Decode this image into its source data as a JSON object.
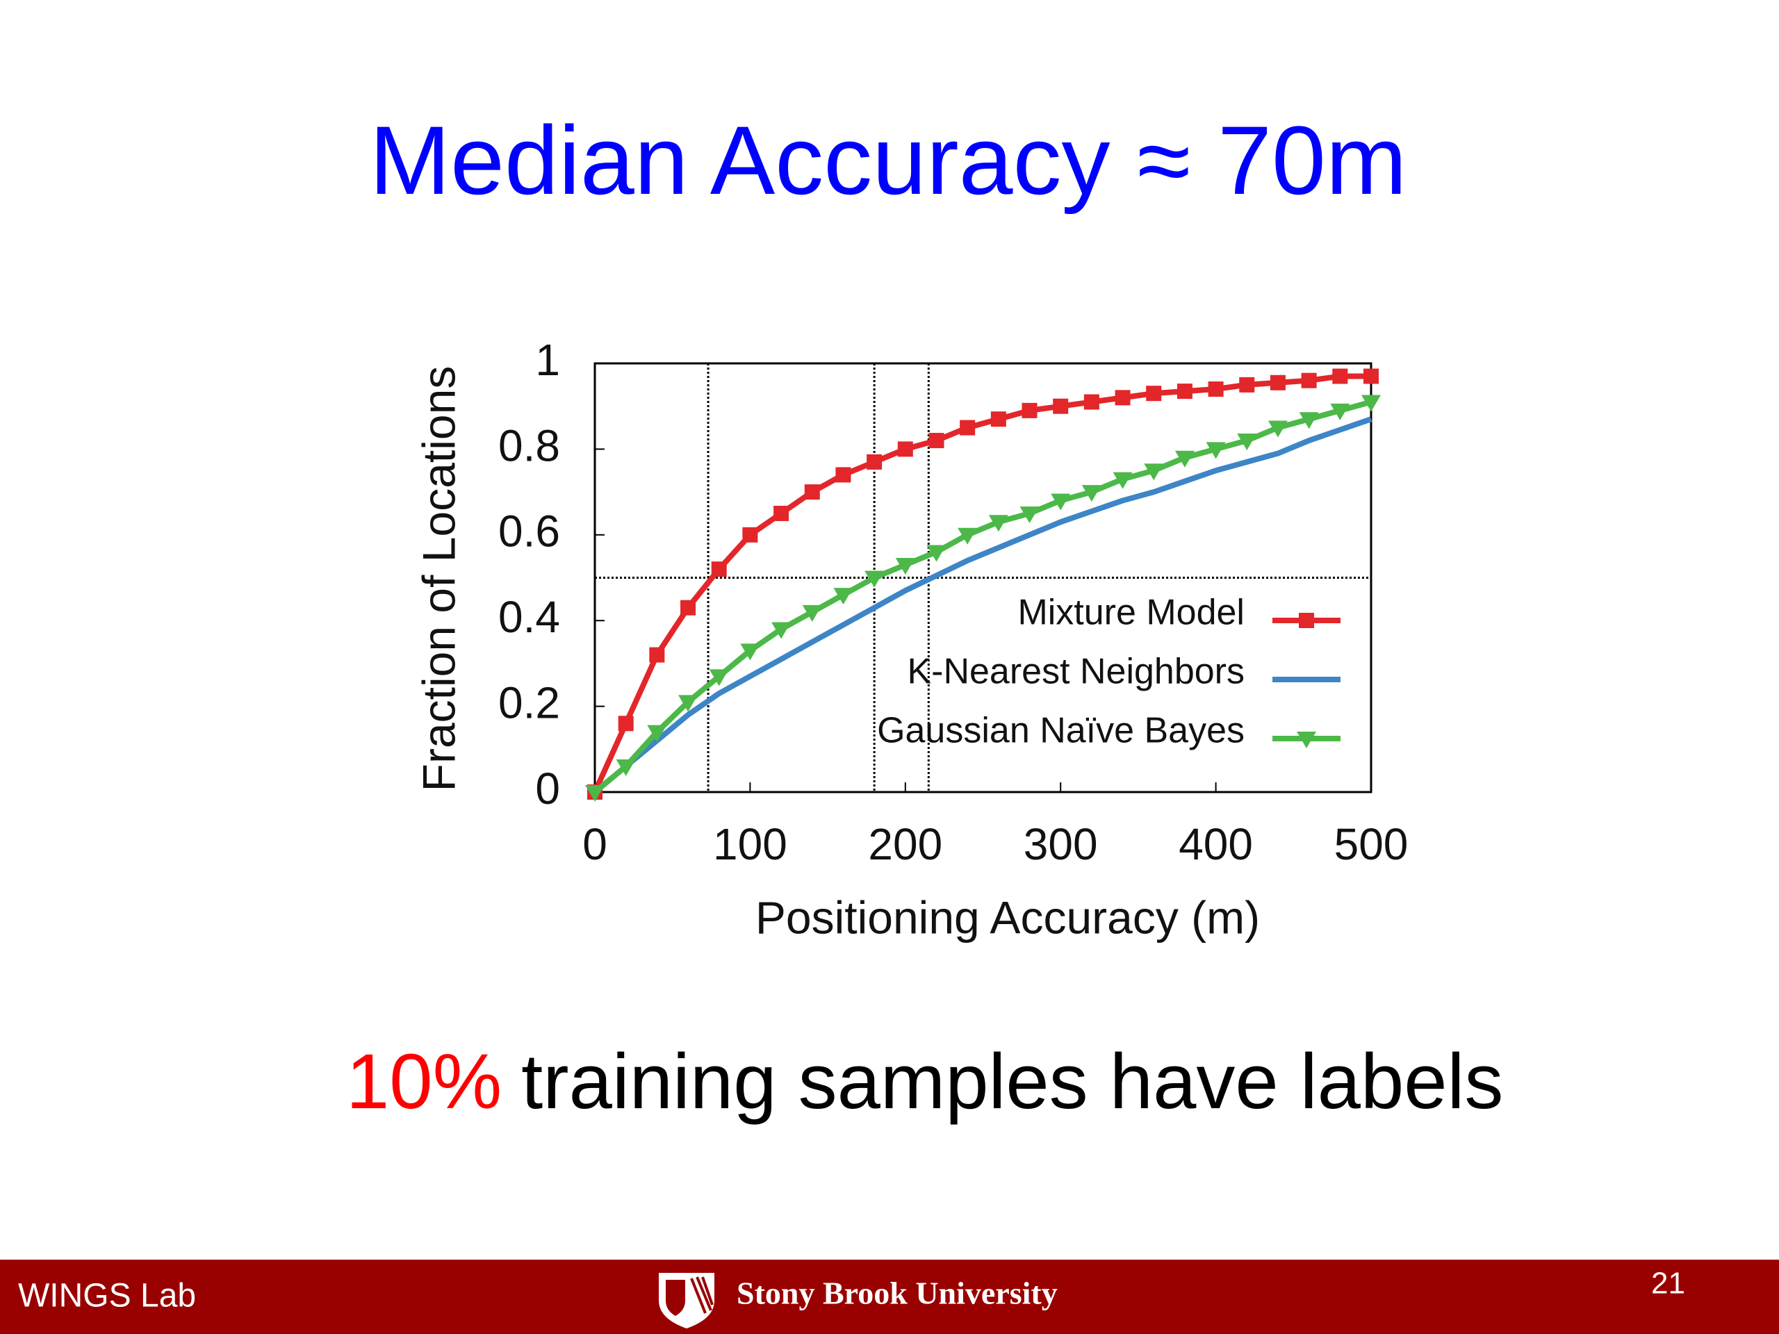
{
  "slide": {
    "title": "Median Accuracy ≈ 70m",
    "caption": {
      "highlight": "10%",
      "text": "training samples have labels"
    },
    "footer": {
      "left": "WINGS Lab",
      "logo": "Stony Brook University",
      "page": "21"
    }
  },
  "chart_data": {
    "type": "line",
    "xlabel": "Positioning Accuracy (m)",
    "ylabel": "Fraction of Locations",
    "x": [
      0,
      20,
      40,
      60,
      80,
      100,
      120,
      140,
      160,
      180,
      200,
      220,
      240,
      260,
      280,
      300,
      320,
      340,
      360,
      380,
      400,
      420,
      440,
      460,
      480,
      500
    ],
    "series": [
      {
        "name": "Mixture Model",
        "color": "#e3262a",
        "marker": "square",
        "values": [
          0,
          0.16,
          0.32,
          0.43,
          0.52,
          0.6,
          0.65,
          0.7,
          0.74,
          0.77,
          0.8,
          0.82,
          0.85,
          0.87,
          0.89,
          0.9,
          0.91,
          0.92,
          0.93,
          0.935,
          0.94,
          0.95,
          0.955,
          0.96,
          0.97,
          0.97
        ]
      },
      {
        "name": "K-Nearest Neighbors",
        "color": "#3d85c6",
        "marker": "none",
        "values": [
          0,
          0.06,
          0.12,
          0.18,
          0.23,
          0.27,
          0.31,
          0.35,
          0.39,
          0.43,
          0.47,
          0.505,
          0.54,
          0.57,
          0.6,
          0.63,
          0.655,
          0.68,
          0.7,
          0.725,
          0.75,
          0.77,
          0.79,
          0.82,
          0.845,
          0.87
        ]
      },
      {
        "name": "Gaussian Naïve Bayes",
        "color": "#4cb848",
        "marker": "triangle-down",
        "values": [
          0,
          0.06,
          0.14,
          0.21,
          0.27,
          0.33,
          0.38,
          0.42,
          0.46,
          0.5,
          0.53,
          0.56,
          0.6,
          0.63,
          0.65,
          0.68,
          0.7,
          0.73,
          0.75,
          0.78,
          0.8,
          0.82,
          0.85,
          0.87,
          0.89,
          0.91
        ]
      }
    ],
    "xlim": [
      0,
      500
    ],
    "ylim": [
      0,
      1
    ],
    "xticks": [
      0,
      100,
      200,
      300,
      400,
      500
    ],
    "yticks": [
      0,
      0.2,
      0.4,
      0.6,
      0.8,
      1
    ],
    "vlines": [
      73,
      180,
      215
    ],
    "hlines": [
      0.5
    ],
    "grid": false,
    "legend": "lower right"
  }
}
